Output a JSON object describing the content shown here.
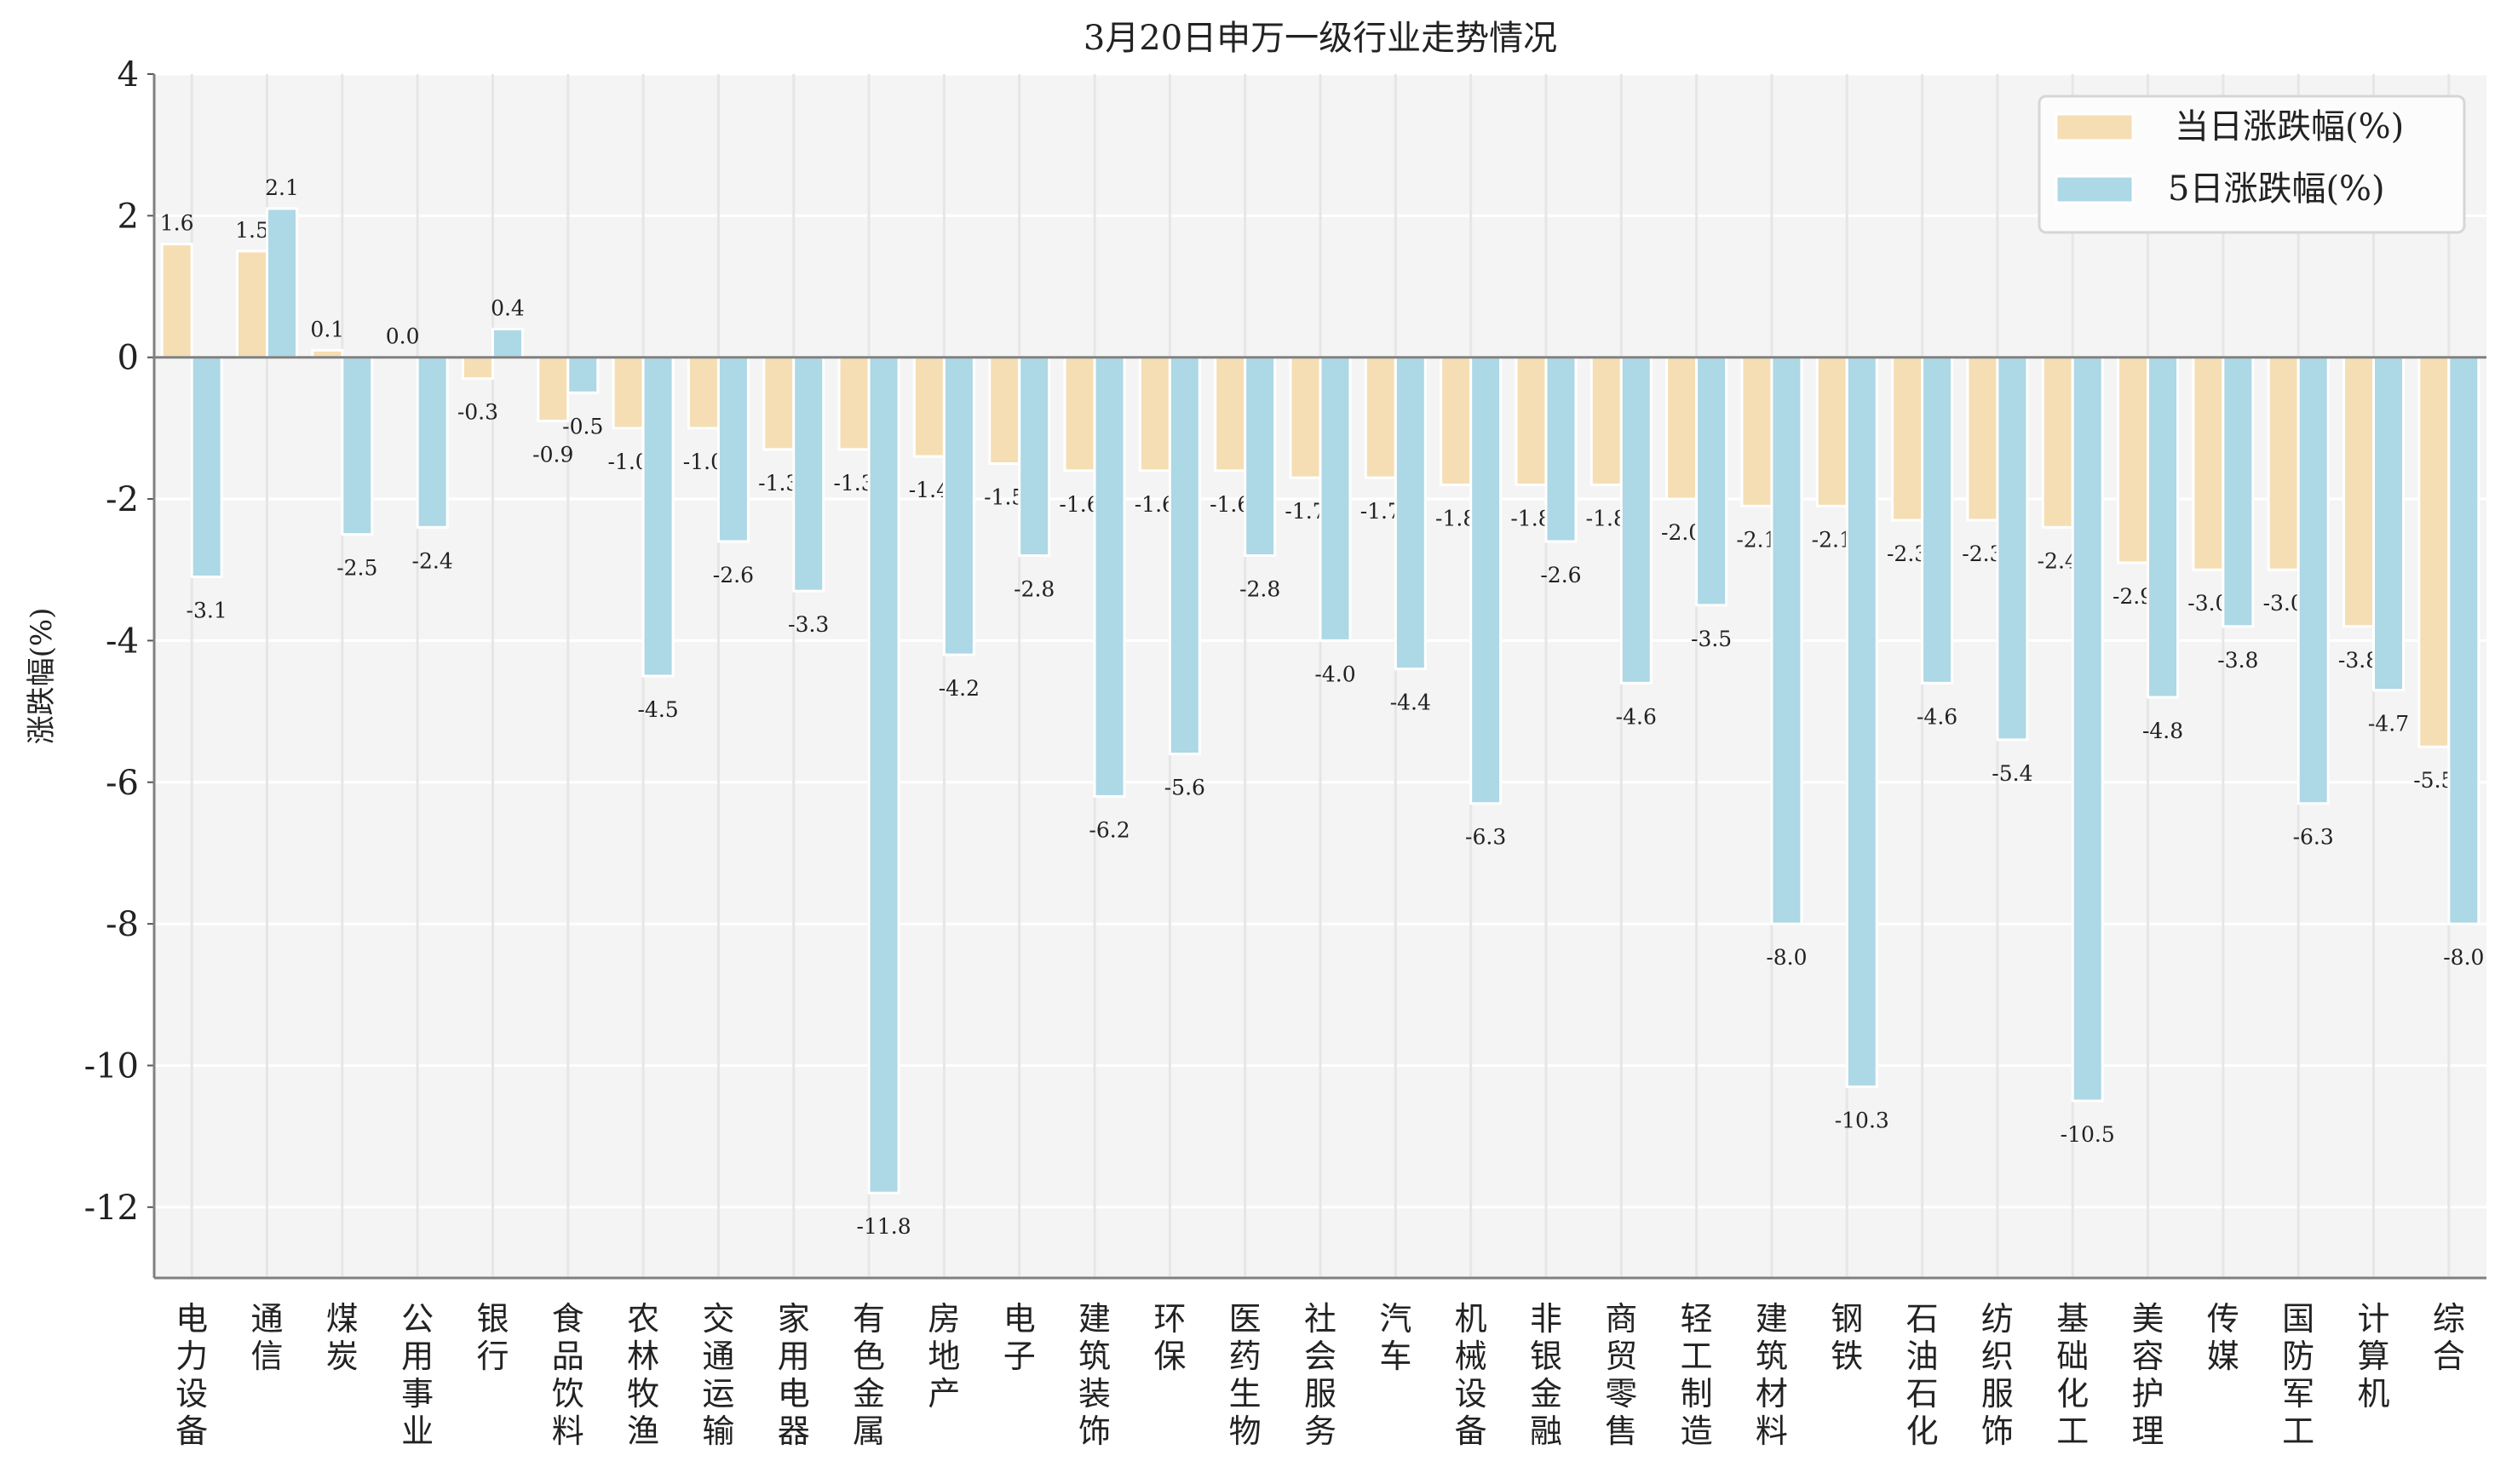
{
  "chart_data": {
    "type": "bar",
    "title": "3月20日申万一级行业走势情况",
    "xlabel": "",
    "ylabel": "涨跌幅(%)",
    "ylim": [
      -13,
      4
    ],
    "yticks": [
      4,
      2,
      0,
      -2,
      -4,
      -6,
      -8,
      -10,
      -12
    ],
    "grid": true,
    "legend_position": "top-right",
    "categories": [
      "电力设备",
      "通信",
      "煤炭",
      "公用事业",
      "银行",
      "食品饮料",
      "农林牧渔",
      "交通运输",
      "家用电器",
      "有色金属",
      "房地产",
      "电子",
      "建筑装饰",
      "环保",
      "医药生物",
      "社会服务",
      "汽车",
      "机械设备",
      "非银金融",
      "商贸零售",
      "轻工制造",
      "建筑材料",
      "钢铁",
      "石油石化",
      "纺织服饰",
      "基础化工",
      "美容护理",
      "传媒",
      "国防军工",
      "计算机",
      "综合"
    ],
    "series": [
      {
        "name": "当日涨跌幅(%)",
        "color": "#F5DEB3",
        "values": [
          1.6,
          1.5,
          0.1,
          0.0,
          -0.3,
          -0.9,
          -1.0,
          -1.0,
          -1.3,
          -1.3,
          -1.4,
          -1.5,
          -1.6,
          -1.6,
          -1.6,
          -1.7,
          -1.7,
          -1.8,
          -1.8,
          -1.8,
          -2.0,
          -2.1,
          -2.1,
          -2.3,
          -2.3,
          -2.4,
          -2.9,
          -3.0,
          -3.0,
          -3.8,
          -5.5
        ]
      },
      {
        "name": "5日涨跌幅(%)",
        "color": "#ADD8E6",
        "values": [
          -3.1,
          2.1,
          -2.5,
          -2.4,
          0.4,
          -0.5,
          -4.5,
          -2.6,
          -3.3,
          -11.8,
          -4.2,
          -2.8,
          -6.2,
          -5.6,
          -2.8,
          -4.0,
          -4.4,
          -6.3,
          -2.6,
          -4.6,
          -3.5,
          -8.0,
          -10.3,
          -4.6,
          -5.4,
          -10.5,
          -4.8,
          -3.8,
          -6.3,
          -4.7,
          -8.0
        ]
      }
    ]
  }
}
